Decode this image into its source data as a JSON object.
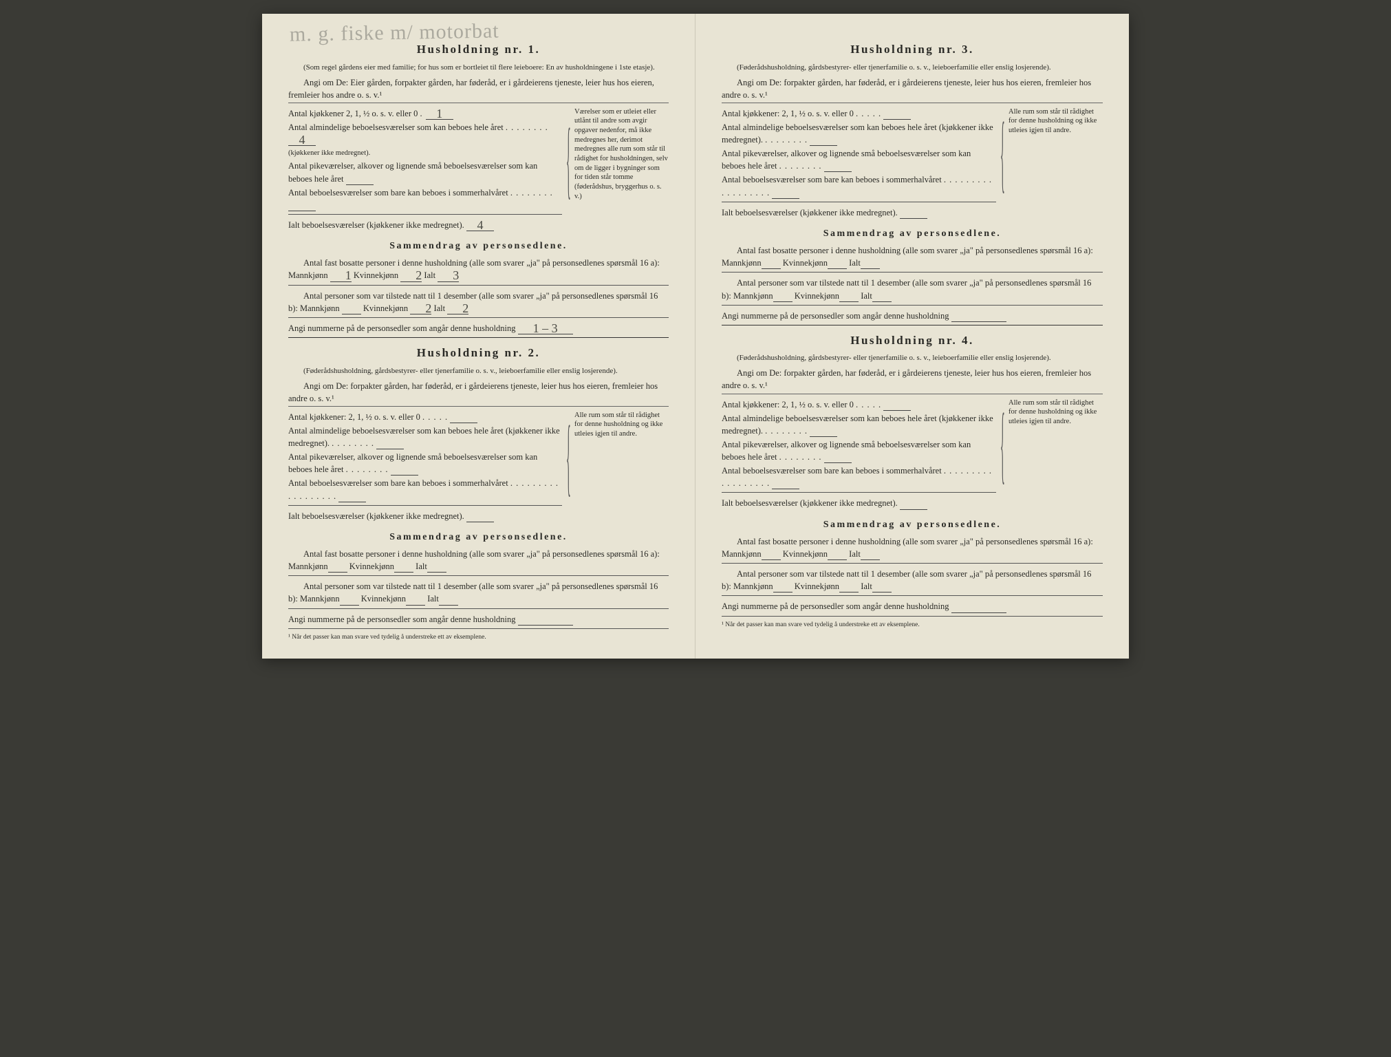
{
  "document": {
    "language": "Norwegian",
    "type": "census-household-form",
    "background_color": "#e8e4d4",
    "text_color": "#2a2a26",
    "handwriting_color": "#7a7a72"
  },
  "handwriting_top": "m. g. fiske m/ motorbat",
  "h1": {
    "title": "Husholdning nr. 1.",
    "sub": "(Som regel gårdens eier med familie; for hus som er bortleiet til flere leieboere: En av husholdningene i 1ste etasje).",
    "instr": "Angi om De: Eier gården, forpakter gården, har føderåd, er i gårdeierens tjeneste, leier hus hos eieren, fremleier hos andre o. s. v.¹",
    "rooms": {
      "kitchens_label": "Antal kjøkkener 2, 1, ½ o. s. v. eller 0",
      "kitchens_value": "1",
      "ordinary_label": "Antal almindelige beboelsesværelser som kan beboes hele året",
      "ordinary_note": "(kjøkkener ikke medregnet).",
      "ordinary_value": "4",
      "small_label": "Antal pikeværelser, alkover og lignende små beboelsesværelser som kan beboes hele året",
      "small_value": "",
      "summer_label": "Antal beboelsesværelser som bare kan beboes i sommerhalvåret",
      "summer_value": "",
      "total_label": "Ialt beboelsesværelser (kjøkkener ikke medregnet).",
      "total_value": "4",
      "side_note": "Værelser som er utleiet eller utlånt til andre som avgir opgaver nedenfor, må ikke medregnes her, derimot medregnes alle rum som står til rådighet for husholdningen, selv om de ligger i bygninger som for tiden står tomme (føderådshus, bryggerhus o. s. v.)"
    },
    "summary": {
      "title": "Sammendrag av personsedlene.",
      "fast_label": "Antal fast bosatte personer i denne husholdning (alle som svarer „ja\" på personsedlenes spørsmål 16 a):",
      "mann_label": "Mannkjønn",
      "mann_value": "1",
      "kvinne_label": "Kvinnekjønn",
      "kvinne_value": "2",
      "ialt_label": "Ialt",
      "ialt_value": "3",
      "tilstede_label": "Antal personer som var tilstede natt til 1 desember (alle som svarer „ja\" på personsedlenes spørsmål 16 b):",
      "t_mann_value": "",
      "t_kvinne_value": "2",
      "t_ialt_value": "2",
      "nummer_label": "Angi nummerne på de personsedler som angår denne husholdning",
      "nummer_value": "1 – 3"
    }
  },
  "h2": {
    "title": "Husholdning nr. 2.",
    "sub": "(Føderådshusholdning, gårdsbestyrer- eller tjenerfamilie o. s. v., leieboerfamilie eller enslig losjerende).",
    "instr": "Angi om De: forpakter gården, har føderåd, er i gårdeierens tjeneste, leier hus hos eieren, fremleier hos andre o. s. v.¹",
    "rooms": {
      "kitchens_label": "Antal kjøkkener: 2, 1, ½ o. s. v. eller 0",
      "ordinary_label": "Antal almindelige beboelsesværelser som kan beboes hele året (kjøkkener ikke medregnet).",
      "small_label": "Antal pikeværelser, alkover og lignende små beboelsesværelser som kan beboes hele året",
      "summer_label": "Antal beboelsesværelser som bare kan beboes i sommerhalvåret",
      "total_label": "Ialt beboelsesværelser (kjøkkener ikke medregnet).",
      "side_note": "Alle rum som står til rådighet for denne husholdning og ikke utleies igjen til andre."
    },
    "summary": {
      "title": "Sammendrag av personsedlene.",
      "fast_label": "Antal fast bosatte personer i denne husholdning (alle som svarer „ja\" på personsedlenes spørsmål 16 a):",
      "tilstede_label": "Antal personer som var tilstede natt til 1 desember (alle som svarer „ja\" på personsedlenes spørsmål 16 b):",
      "nummer_label": "Angi nummerne på de personsedler som angår denne husholdning"
    }
  },
  "h3": {
    "title": "Husholdning nr. 3.",
    "sub": "(Føderådshusholdning, gårdsbestyrer- eller tjenerfamilie o. s. v., leieboerfamilie eller enslig losjerende).",
    "instr": "Angi om De: forpakter gården, har føderåd, er i gårdeierens tjeneste, leier hus hos eieren, fremleier hos andre o. s. v.¹"
  },
  "h4": {
    "title": "Husholdning nr. 4.",
    "sub": "(Føderådshusholdning, gårdsbestyrer- eller tjenerfamilie o. s. v., leieboerfamilie eller enslig losjerende).",
    "instr": "Angi om De: forpakter gården, har føderåd, er i gårdeierens tjeneste, leier hus hos eieren, fremleier hos andre o. s. v.¹"
  },
  "common": {
    "mann": "Mannkjønn",
    "kvinne": "Kvinnekjønn",
    "ialt": "Ialt",
    "dots5": ". . . . .",
    "dots8": ". . . . . . . .",
    "dots_long": ". . . . . . . . . . . . . . . . . ."
  },
  "footnote": "¹ Når det passer kan man svare ved tydelig å understreke ett av eksemplene."
}
